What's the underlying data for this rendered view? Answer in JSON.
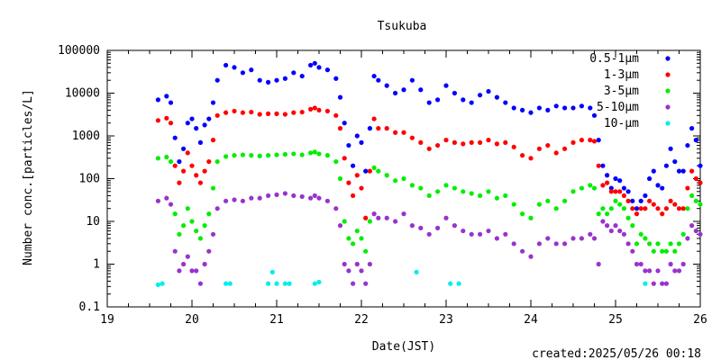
{
  "chart_data": {
    "type": "scatter",
    "title": "Tsukuba",
    "xlabel": "Date(JST)",
    "ylabel": "Number conc.[particles/L]",
    "footer": "created:2025/05/26 00:18",
    "x_scale": "linear",
    "y_scale": "log",
    "xlim": [
      19,
      26
    ],
    "ylim": [
      0.1,
      100000
    ],
    "x_ticks": [
      "19",
      "20",
      "21",
      "22",
      "23",
      "24",
      "25",
      "26"
    ],
    "y_ticks": [
      "0.1",
      "1",
      "10",
      "100",
      "1000",
      "10000",
      "100000"
    ],
    "legend_position": "top-right",
    "grid": false,
    "series": [
      {
        "name": "0.5-1μm",
        "color": "#0000ff",
        "x": [
          19.6,
          19.7,
          19.75,
          19.8,
          19.85,
          19.9,
          19.95,
          20.0,
          20.05,
          20.1,
          20.15,
          20.2,
          20.25,
          20.3,
          20.4,
          20.5,
          20.6,
          20.7,
          20.8,
          20.9,
          21.0,
          21.1,
          21.2,
          21.3,
          21.4,
          21.45,
          21.5,
          21.6,
          21.7,
          21.75,
          21.8,
          21.85,
          21.9,
          21.95,
          22.0,
          22.05,
          22.1,
          22.15,
          22.2,
          22.3,
          22.4,
          22.5,
          22.6,
          22.7,
          22.8,
          22.9,
          23.0,
          23.1,
          23.2,
          23.3,
          23.4,
          23.5,
          23.6,
          23.7,
          23.8,
          23.9,
          24.0,
          24.1,
          24.2,
          24.3,
          24.4,
          24.5,
          24.6,
          24.7,
          24.75,
          24.8,
          24.85,
          24.9,
          24.95,
          25.0,
          25.05,
          25.1,
          25.15,
          25.2,
          25.25,
          25.3,
          25.35,
          25.4,
          25.45,
          25.5,
          25.55,
          25.6,
          25.65,
          25.7,
          25.75,
          25.8,
          25.85,
          25.9,
          25.95,
          26.0
        ],
        "y": [
          7000,
          8500,
          6000,
          900,
          250,
          500,
          2000,
          2500,
          1500,
          700,
          1800,
          2500,
          6000,
          20000,
          45000,
          40000,
          30000,
          35000,
          20000,
          18000,
          20000,
          22000,
          30000,
          25000,
          45000,
          50000,
          40000,
          35000,
          22000,
          8000,
          2000,
          600,
          200,
          1000,
          700,
          150,
          1500,
          25000,
          20000,
          15000,
          10000,
          12000,
          20000,
          12000,
          6000,
          7000,
          15000,
          10000,
          7000,
          6000,
          9000,
          11000,
          8000,
          6000,
          4500,
          4000,
          3500,
          4500,
          4000,
          5000,
          4500,
          4500,
          5000,
          4500,
          3000,
          800,
          200,
          120,
          60,
          100,
          90,
          60,
          50,
          30,
          20,
          30,
          40,
          100,
          150,
          70,
          60,
          200,
          500,
          250,
          150,
          150,
          600,
          1500,
          800,
          200
        ]
      },
      {
        "name": "1-3μm",
        "color": "#ff0000",
        "x": [
          19.6,
          19.7,
          19.75,
          19.8,
          19.85,
          19.9,
          19.95,
          20.0,
          20.05,
          20.1,
          20.15,
          20.2,
          20.25,
          20.3,
          20.4,
          20.5,
          20.6,
          20.7,
          20.8,
          20.9,
          21.0,
          21.1,
          21.2,
          21.3,
          21.4,
          21.45,
          21.5,
          21.6,
          21.7,
          21.75,
          21.8,
          21.85,
          21.9,
          21.95,
          22.0,
          22.05,
          22.1,
          22.15,
          22.2,
          22.3,
          22.4,
          22.5,
          22.6,
          22.7,
          22.8,
          22.9,
          23.0,
          23.1,
          23.2,
          23.3,
          23.4,
          23.5,
          23.6,
          23.7,
          23.8,
          23.9,
          24.0,
          24.1,
          24.2,
          24.3,
          24.4,
          24.5,
          24.6,
          24.7,
          24.75,
          24.8,
          24.85,
          24.9,
          24.95,
          25.0,
          25.05,
          25.1,
          25.15,
          25.2,
          25.25,
          25.3,
          25.35,
          25.4,
          25.45,
          25.5,
          25.55,
          25.6,
          25.65,
          25.7,
          25.75,
          25.8,
          25.85,
          25.9,
          25.95,
          26.0
        ],
        "y": [
          2300,
          2600,
          2000,
          200,
          80,
          150,
          400,
          200,
          120,
          80,
          150,
          250,
          800,
          3000,
          3500,
          3800,
          3500,
          3600,
          3200,
          3300,
          3300,
          3200,
          3500,
          3600,
          4200,
          4500,
          4000,
          3800,
          3000,
          1500,
          300,
          80,
          40,
          120,
          60,
          12,
          150,
          2500,
          1500,
          1500,
          1200,
          1200,
          900,
          700,
          500,
          600,
          800,
          700,
          650,
          700,
          700,
          800,
          650,
          700,
          550,
          350,
          300,
          500,
          600,
          400,
          500,
          700,
          800,
          800,
          750,
          200,
          70,
          80,
          50,
          50,
          50,
          40,
          30,
          20,
          15,
          20,
          20,
          30,
          25,
          20,
          15,
          20,
          30,
          25,
          20,
          20,
          60,
          150,
          100,
          80
        ]
      },
      {
        "name": "3-5μm",
        "color": "#00ee00",
        "x": [
          19.6,
          19.7,
          19.75,
          19.8,
          19.85,
          19.9,
          19.95,
          20.0,
          20.05,
          20.1,
          20.15,
          20.2,
          20.25,
          20.3,
          20.4,
          20.5,
          20.6,
          20.7,
          20.8,
          20.9,
          21.0,
          21.1,
          21.2,
          21.3,
          21.4,
          21.45,
          21.5,
          21.6,
          21.7,
          21.75,
          21.8,
          21.85,
          21.9,
          21.95,
          22.0,
          22.05,
          22.1,
          22.15,
          22.2,
          22.3,
          22.4,
          22.5,
          22.6,
          22.7,
          22.8,
          22.9,
          23.0,
          23.1,
          23.2,
          23.3,
          23.4,
          23.5,
          23.6,
          23.7,
          23.8,
          23.9,
          24.0,
          24.1,
          24.2,
          24.3,
          24.4,
          24.5,
          24.6,
          24.7,
          24.75,
          24.8,
          24.85,
          24.9,
          24.95,
          25.0,
          25.05,
          25.1,
          25.15,
          25.2,
          25.25,
          25.3,
          25.35,
          25.4,
          25.45,
          25.5,
          25.55,
          25.6,
          25.65,
          25.7,
          25.75,
          25.8,
          25.85,
          25.9,
          25.95,
          26.0
        ],
        "y": [
          300,
          320,
          250,
          15,
          5,
          8,
          20,
          10,
          6,
          4,
          8,
          15,
          60,
          250,
          330,
          350,
          360,
          350,
          340,
          350,
          360,
          370,
          380,
          360,
          400,
          420,
          380,
          350,
          250,
          100,
          10,
          4,
          3,
          6,
          4,
          2,
          10,
          180,
          150,
          120,
          90,
          100,
          70,
          60,
          40,
          50,
          70,
          60,
          50,
          45,
          40,
          50,
          35,
          40,
          25,
          15,
          12,
          25,
          30,
          20,
          30,
          50,
          60,
          70,
          60,
          15,
          20,
          15,
          20,
          30,
          25,
          20,
          12,
          8,
          3,
          5,
          4,
          3,
          2,
          3,
          2,
          2,
          3,
          2,
          3,
          5,
          20,
          40,
          30,
          25
        ]
      },
      {
        "name": "5-10μm",
        "color": "#9933cc",
        "x": [
          19.6,
          19.7,
          19.75,
          19.8,
          19.85,
          19.9,
          19.95,
          20.0,
          20.05,
          20.1,
          20.15,
          20.2,
          20.25,
          20.3,
          20.4,
          20.5,
          20.6,
          20.7,
          20.8,
          20.9,
          21.0,
          21.1,
          21.2,
          21.3,
          21.4,
          21.45,
          21.5,
          21.6,
          21.7,
          21.75,
          21.8,
          21.85,
          21.9,
          21.95,
          22.0,
          22.05,
          22.1,
          22.15,
          22.2,
          22.3,
          22.4,
          22.5,
          22.6,
          22.7,
          22.8,
          22.9,
          23.0,
          23.1,
          23.2,
          23.3,
          23.4,
          23.5,
          23.6,
          23.7,
          23.8,
          23.9,
          24.0,
          24.1,
          24.2,
          24.3,
          24.4,
          24.5,
          24.6,
          24.7,
          24.75,
          24.8,
          24.85,
          24.9,
          24.95,
          25.0,
          25.05,
          25.1,
          25.15,
          25.2,
          25.25,
          25.3,
          25.35,
          25.4,
          25.45,
          25.5,
          25.55,
          25.6,
          25.65,
          25.7,
          25.75,
          25.8,
          25.85,
          25.9,
          25.95,
          26.0
        ],
        "y": [
          30,
          35,
          25,
          2,
          0.7,
          1,
          1.5,
          0.7,
          0.7,
          0.35,
          1,
          2,
          5,
          20,
          30,
          32,
          30,
          35,
          35,
          40,
          42,
          45,
          40,
          38,
          35,
          40,
          35,
          30,
          20,
          8,
          1,
          0.7,
          0.35,
          1,
          0.7,
          0.35,
          1,
          15,
          12,
          12,
          10,
          15,
          8,
          7,
          5,
          7,
          12,
          8,
          6,
          5,
          5,
          6,
          4,
          5,
          3,
          2,
          1.5,
          3,
          4,
          3,
          3,
          4,
          4,
          5,
          4,
          1,
          10,
          8,
          6,
          8,
          6,
          5,
          3,
          2,
          1,
          1,
          0.7,
          0.7,
          0.35,
          0.7,
          0.35,
          0.35,
          1,
          0.7,
          0.7,
          1,
          4,
          8,
          6,
          5
        ]
      },
      {
        "name": "10-μm",
        "color": "#00eeee",
        "x": [
          19.6,
          19.65,
          20.4,
          20.45,
          20.9,
          20.95,
          21.0,
          21.1,
          21.15,
          21.45,
          21.5,
          22.65,
          23.05,
          23.15,
          25.35
        ],
        "y": [
          0.33,
          0.35,
          0.35,
          0.35,
          0.35,
          0.65,
          0.35,
          0.35,
          0.35,
          0.35,
          0.38,
          0.65,
          0.35,
          0.35,
          0.35
        ]
      }
    ]
  }
}
